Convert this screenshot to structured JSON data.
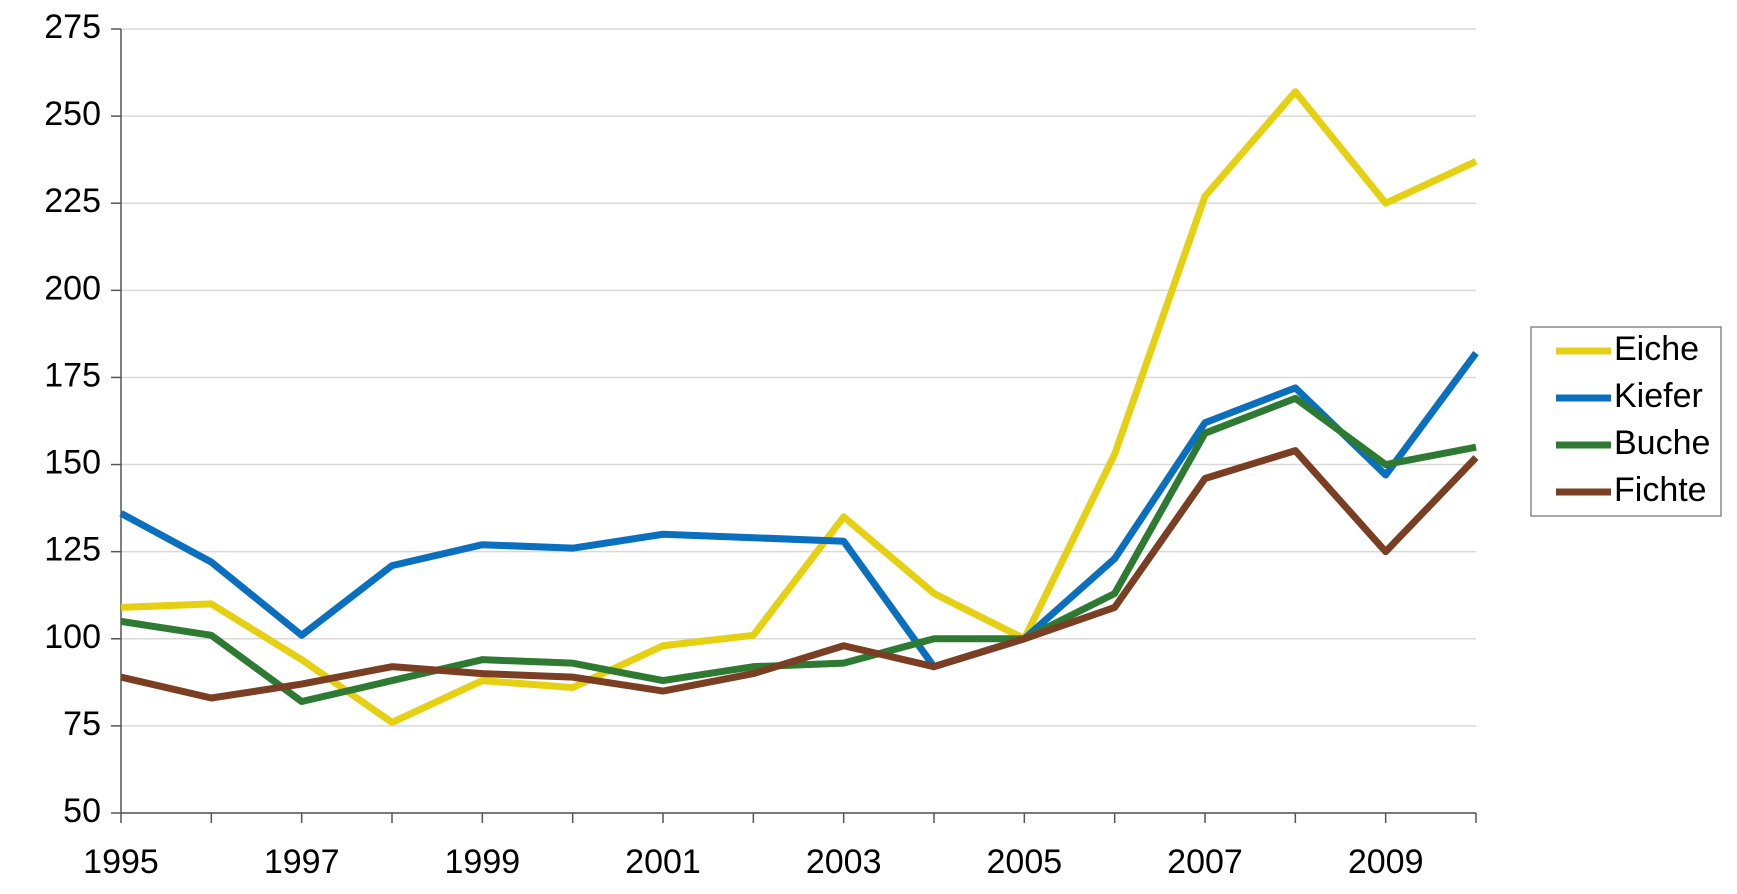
{
  "chart_data": {
    "type": "line",
    "x": [
      1995,
      1996,
      1997,
      1998,
      1999,
      2000,
      2001,
      2002,
      2003,
      2004,
      2005,
      2006,
      2007,
      2008,
      2009,
      2010
    ],
    "series": [
      {
        "name": "Eiche",
        "color": "#e6d014",
        "values": [
          109,
          110,
          94,
          76,
          88,
          86,
          98,
          101,
          135,
          113,
          100,
          153,
          227,
          257,
          225,
          237
        ]
      },
      {
        "name": "Kiefer",
        "color": "#0b6fbf",
        "values": [
          136,
          122,
          101,
          121,
          127,
          126,
          130,
          129,
          128,
          92,
          100,
          123,
          162,
          172,
          147,
          182
        ]
      },
      {
        "name": "Buche",
        "color": "#2e7a32",
        "values": [
          105,
          101,
          82,
          88,
          94,
          93,
          88,
          92,
          93,
          100,
          100,
          113,
          159,
          169,
          150,
          155
        ]
      },
      {
        "name": "Fichte",
        "color": "#7a3e22",
        "values": [
          89,
          83,
          87,
          92,
          90,
          89,
          85,
          90,
          98,
          92,
          100,
          109,
          146,
          154,
          125,
          152
        ]
      }
    ],
    "xlim": [
      1995,
      2010
    ],
    "xticks": [
      1995,
      1997,
      1999,
      2001,
      2003,
      2005,
      2007,
      2009
    ],
    "ylim": [
      50,
      275
    ],
    "yticks": [
      50,
      75,
      100,
      125,
      150,
      175,
      200,
      225,
      250,
      275
    ],
    "grid": true,
    "legend": "right"
  }
}
